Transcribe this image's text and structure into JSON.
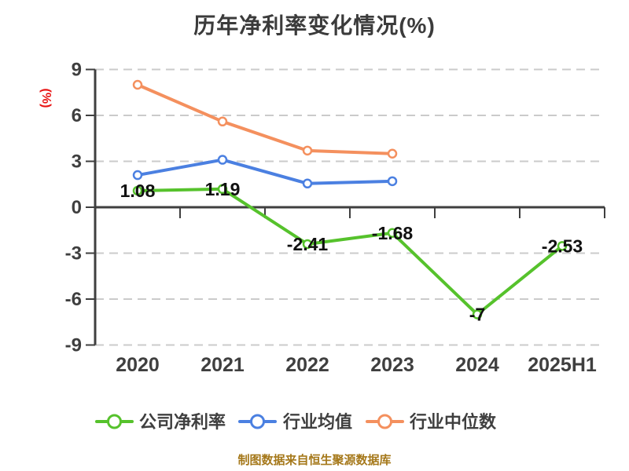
{
  "header": {
    "title": "历年净利率变化情况(%)",
    "title_color": "#3b3b3b"
  },
  "footer": {
    "source_note": "制图数据来自恒生聚源数据库",
    "color": "#a5781a"
  },
  "chart_data": {
    "type": "line",
    "title": "历年净利率变化情况(%)",
    "ylabel": "(%)",
    "ylabel_color": "#e81414",
    "categories": [
      "2020",
      "2021",
      "2022",
      "2023",
      "2024",
      "2025H1"
    ],
    "ylim": [
      -9,
      9
    ],
    "yticks": [
      9,
      6,
      3,
      0,
      -3,
      -6,
      -9
    ],
    "grid": {
      "horizontal": true,
      "style": "dashed",
      "color": "#cbcbcb"
    },
    "axis_color": "#3f3f3f",
    "tick_label_color": "#3f3f3f",
    "data_label_color": "#111111",
    "legend_position": "bottom",
    "series": [
      {
        "id": "company-net-margin",
        "name": "公司净利率",
        "color": "#56c22c",
        "values": [
          1.08,
          1.19,
          -2.41,
          -1.68,
          -7,
          -2.53
        ],
        "labels": [
          "1.08",
          "1.19",
          "-2.41",
          "-1.68",
          "-7",
          "-2.53"
        ],
        "show_labels": true
      },
      {
        "id": "industry-mean",
        "name": "行业均值",
        "color": "#4b80e1",
        "values": [
          2.1,
          3.1,
          1.55,
          1.7,
          null,
          null
        ],
        "labels": [],
        "show_labels": false
      },
      {
        "id": "industry-median",
        "name": "行业中位数",
        "color": "#f4905e",
        "values": [
          8.0,
          5.6,
          3.7,
          3.5,
          null,
          null
        ],
        "labels": [],
        "show_labels": false
      }
    ]
  }
}
